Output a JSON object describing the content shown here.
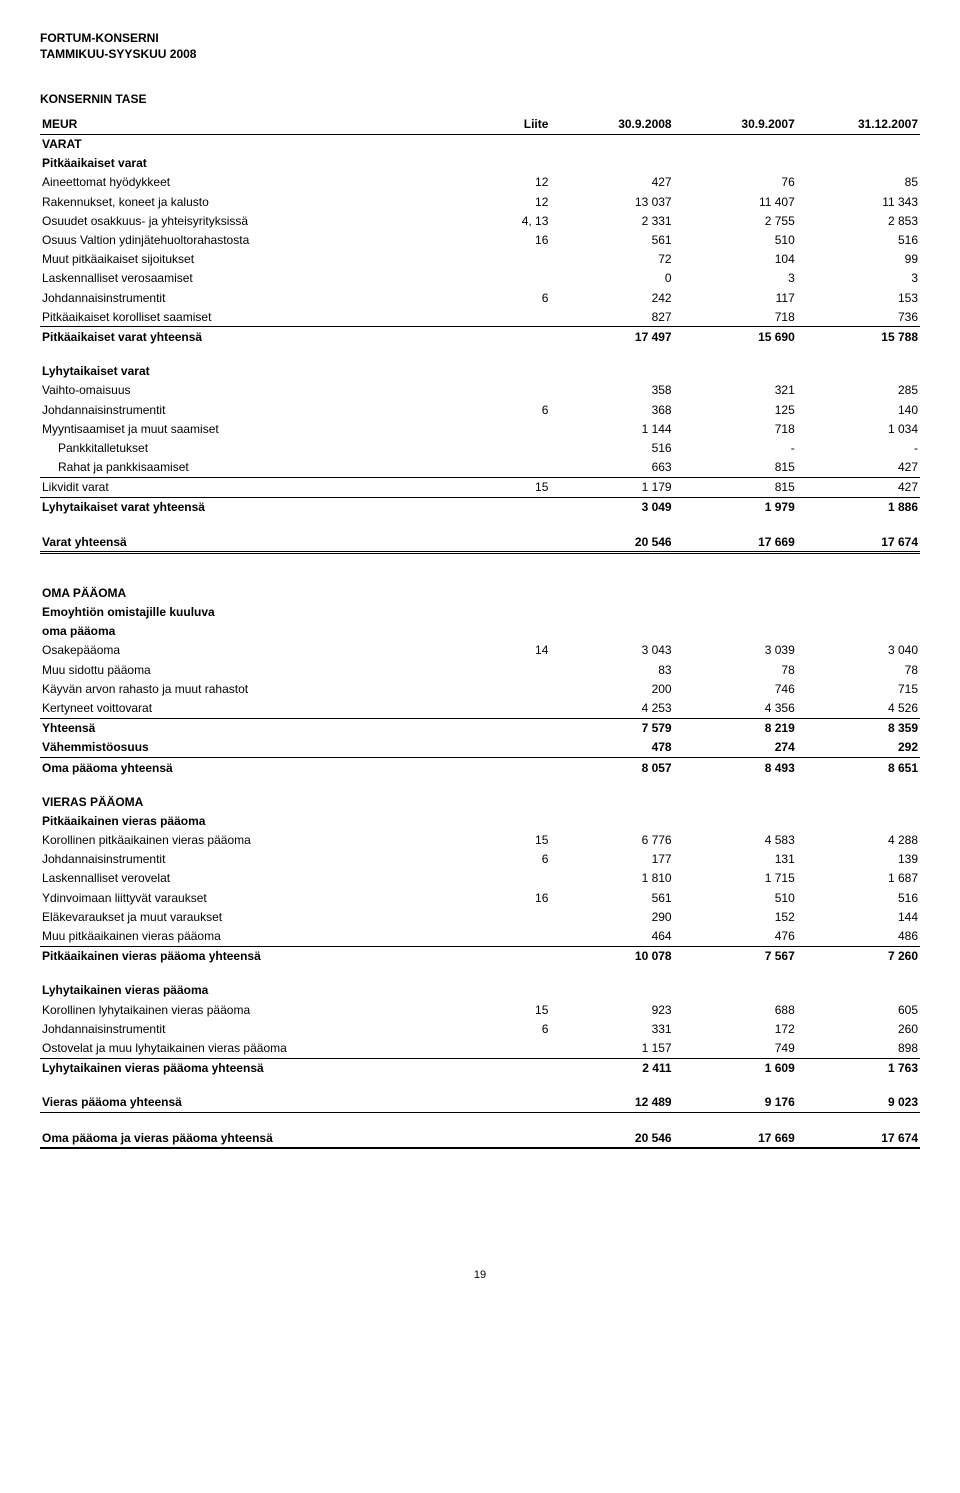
{
  "header": {
    "line1": "FORTUM-KONSERNI",
    "line2": "TAMMIKUU-SYYSKUU 2008"
  },
  "title": "KONSERNIN TASE",
  "columns": {
    "unit": "MEUR",
    "note": "Liite",
    "c1": "30.9.2008",
    "c2": "30.9.2007",
    "c3": "31.12.2007"
  },
  "sections": {
    "varat": {
      "heading": "VARAT",
      "sub1": {
        "heading": "Pitkäaikaiset varat",
        "rows": [
          {
            "label": "Aineettomat hyödykkeet",
            "note": "12",
            "v": [
              "427",
              "76",
              "85"
            ]
          },
          {
            "label": "Rakennukset, koneet ja kalusto",
            "note": "12",
            "v": [
              "13 037",
              "11 407",
              "11 343"
            ]
          },
          {
            "label": "Osuudet osakkuus- ja yhteisyrityksissä",
            "note": "4, 13",
            "v": [
              "2 331",
              "2 755",
              "2 853"
            ]
          },
          {
            "label": "Osuus Valtion ydinjätehuoltorahastosta",
            "note": "16",
            "v": [
              "561",
              "510",
              "516"
            ]
          },
          {
            "label": "Muut pitkäaikaiset sijoitukset",
            "note": "",
            "v": [
              "72",
              "104",
              "99"
            ]
          },
          {
            "label": "Laskennalliset verosaamiset",
            "note": "",
            "v": [
              "0",
              "3",
              "3"
            ]
          },
          {
            "label": "Johdannaisinstrumentit",
            "note": "6",
            "v": [
              "242",
              "117",
              "153"
            ]
          },
          {
            "label": "Pitkäaikaiset korolliset saamiset",
            "note": "",
            "v": [
              "827",
              "718",
              "736"
            ],
            "underline": "u1"
          }
        ],
        "total": {
          "label": "Pitkäaikaiset varat yhteensä",
          "v": [
            "17 497",
            "15 690",
            "15 788"
          ]
        }
      },
      "sub2": {
        "heading": "Lyhytaikaiset varat",
        "rows": [
          {
            "label": "Vaihto-omaisuus",
            "note": "",
            "v": [
              "358",
              "321",
              "285"
            ]
          },
          {
            "label": "Johdannaisinstrumentit",
            "note": "6",
            "v": [
              "368",
              "125",
              "140"
            ]
          },
          {
            "label": "Myyntisaamiset ja muut saamiset",
            "note": "",
            "v": [
              "1 144",
              "718",
              "1 034"
            ]
          },
          {
            "label": "  Pankkitalletukset",
            "note": "",
            "v": [
              "516",
              "-",
              "-"
            ]
          },
          {
            "label": "  Rahat ja pankkisaamiset",
            "note": "",
            "v": [
              "663",
              "815",
              "427"
            ],
            "underline": "u1"
          },
          {
            "label": "Likvidit varat",
            "note": "15",
            "v": [
              "1 179",
              "815",
              "427"
            ],
            "underline": "u1"
          }
        ],
        "total": {
          "label": "Lyhytaikaiset varat yhteensä",
          "v": [
            "3 049",
            "1 979",
            "1 886"
          ]
        }
      },
      "grand": {
        "label": "Varat yhteensä",
        "v": [
          "20 546",
          "17 669",
          "17 674"
        ]
      }
    },
    "oma": {
      "heading": "OMA PÄÄOMA",
      "sub_heading1": "Emoyhtiön omistajille kuuluva",
      "sub_heading2": "oma pääoma",
      "rows": [
        {
          "label": "Osakepääoma",
          "note": "14",
          "v": [
            "3 043",
            "3 039",
            "3 040"
          ]
        },
        {
          "label": "Muu sidottu pääoma",
          "note": "",
          "v": [
            "83",
            "78",
            "78"
          ]
        },
        {
          "label": "Käyvän arvon rahasto ja muut rahastot",
          "note": "",
          "v": [
            "200",
            "746",
            "715"
          ]
        },
        {
          "label": "Kertyneet voittovarat",
          "note": "",
          "v": [
            "4 253",
            "4 356",
            "4 526"
          ],
          "underline": "u1"
        }
      ],
      "subtotal": {
        "label": "Yhteensä",
        "v": [
          "7 579",
          "8 219",
          "8 359"
        ]
      },
      "minority": {
        "label": "Vähemmistöosuus",
        "v": [
          "478",
          "274",
          "292"
        ],
        "underline": "u1"
      },
      "total": {
        "label": "Oma pääoma yhteensä",
        "v": [
          "8 057",
          "8 493",
          "8 651"
        ]
      }
    },
    "vieras": {
      "heading": "VIERAS PÄÄOMA",
      "sub1": {
        "heading": "Pitkäaikainen vieras pääoma",
        "rows": [
          {
            "label": "Korollinen pitkäaikainen vieras pääoma",
            "note": "15",
            "v": [
              "6 776",
              "4 583",
              "4 288"
            ]
          },
          {
            "label": "Johdannaisinstrumentit",
            "note": "6",
            "v": [
              "177",
              "131",
              "139"
            ]
          },
          {
            "label": "Laskennalliset verovelat",
            "note": "",
            "v": [
              "1 810",
              "1 715",
              "1 687"
            ]
          },
          {
            "label": "Ydinvoimaan liittyvät varaukset",
            "note": "16",
            "v": [
              "561",
              "510",
              "516"
            ]
          },
          {
            "label": "Eläkevaraukset ja muut varaukset",
            "note": "",
            "v": [
              "290",
              "152",
              "144"
            ]
          },
          {
            "label": "Muu pitkäaikainen vieras pääoma",
            "note": "",
            "v": [
              "464",
              "476",
              "486"
            ],
            "underline": "u1"
          }
        ],
        "total": {
          "label": "Pitkäaikainen vieras pääoma yhteensä",
          "v": [
            "10 078",
            "7 567",
            "7 260"
          ]
        }
      },
      "sub2": {
        "heading": "Lyhytaikainen vieras pääoma",
        "rows": [
          {
            "label": "Korollinen lyhytaikainen vieras pääoma",
            "note": "15",
            "v": [
              "923",
              "688",
              "605"
            ]
          },
          {
            "label": "Johdannaisinstrumentit",
            "note": "6",
            "v": [
              "331",
              "172",
              "260"
            ]
          },
          {
            "label": "Ostovelat ja muu lyhytaikainen vieras pääoma",
            "note": "",
            "v": [
              "1 157",
              "749",
              "898"
            ],
            "underline": "u1"
          }
        ],
        "total": {
          "label": "Lyhytaikainen vieras pääoma yhteensä",
          "v": [
            "2 411",
            "1 609",
            "1 763"
          ]
        }
      },
      "grand": {
        "label": "Vieras pääoma yhteensä",
        "v": [
          "12 489",
          "9 176",
          "9 023"
        ]
      }
    },
    "final": {
      "label": "Oma pääoma ja vieras pääoma yhteensä",
      "v": [
        "20 546",
        "17 669",
        "17 674"
      ]
    }
  },
  "page_number": "19"
}
